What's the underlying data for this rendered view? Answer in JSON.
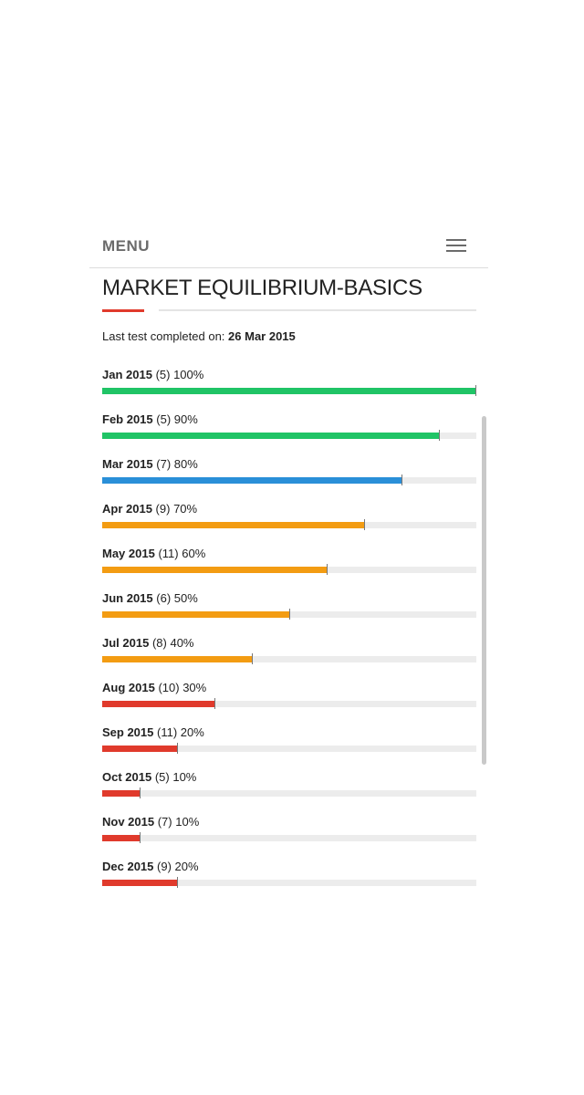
{
  "menu": {
    "label": "MENU",
    "icon": "hamburger-menu-icon"
  },
  "page": {
    "title": "MARKET EQUILIBRIUM-BASICS",
    "last_test_prefix": "Last test completed on:",
    "last_test_date": "26 Mar 2015"
  },
  "colors": {
    "green": "#20c466",
    "blue": "#2a8fd8",
    "orange": "#f39c12",
    "red": "#e03a2c",
    "track": "#ececec",
    "accent_rule": "#e03a2c"
  },
  "results": [
    {
      "month": "Jan 2015",
      "count": "(5)",
      "percent_text": "100%",
      "percent": 100,
      "color": "#20c466"
    },
    {
      "month": "Feb 2015",
      "count": "(5)",
      "percent_text": "90%",
      "percent": 90,
      "color": "#20c466"
    },
    {
      "month": "Mar 2015",
      "count": "(7)",
      "percent_text": "80%",
      "percent": 80,
      "color": "#2a8fd8"
    },
    {
      "month": "Apr 2015",
      "count": "(9)",
      "percent_text": "70%",
      "percent": 70,
      "color": "#f39c12"
    },
    {
      "month": "May 2015",
      "count": "(11)",
      "percent_text": "60%",
      "percent": 60,
      "color": "#f39c12"
    },
    {
      "month": "Jun 2015",
      "count": "(6)",
      "percent_text": "50%",
      "percent": 50,
      "color": "#f39c12"
    },
    {
      "month": "Jul 2015",
      "count": "(8)",
      "percent_text": "40%",
      "percent": 40,
      "color": "#f39c12"
    },
    {
      "month": "Aug 2015",
      "count": "(10)",
      "percent_text": "30%",
      "percent": 30,
      "color": "#e03a2c"
    },
    {
      "month": "Sep 2015",
      "count": "(11)",
      "percent_text": "20%",
      "percent": 20,
      "color": "#e03a2c"
    },
    {
      "month": "Oct 2015",
      "count": "(5)",
      "percent_text": "10%",
      "percent": 10,
      "color": "#e03a2c"
    },
    {
      "month": "Nov 2015",
      "count": "(7)",
      "percent_text": "10%",
      "percent": 10,
      "color": "#e03a2c"
    },
    {
      "month": "Dec 2015",
      "count": "(9)",
      "percent_text": "20%",
      "percent": 20,
      "color": "#e03a2c"
    }
  ]
}
